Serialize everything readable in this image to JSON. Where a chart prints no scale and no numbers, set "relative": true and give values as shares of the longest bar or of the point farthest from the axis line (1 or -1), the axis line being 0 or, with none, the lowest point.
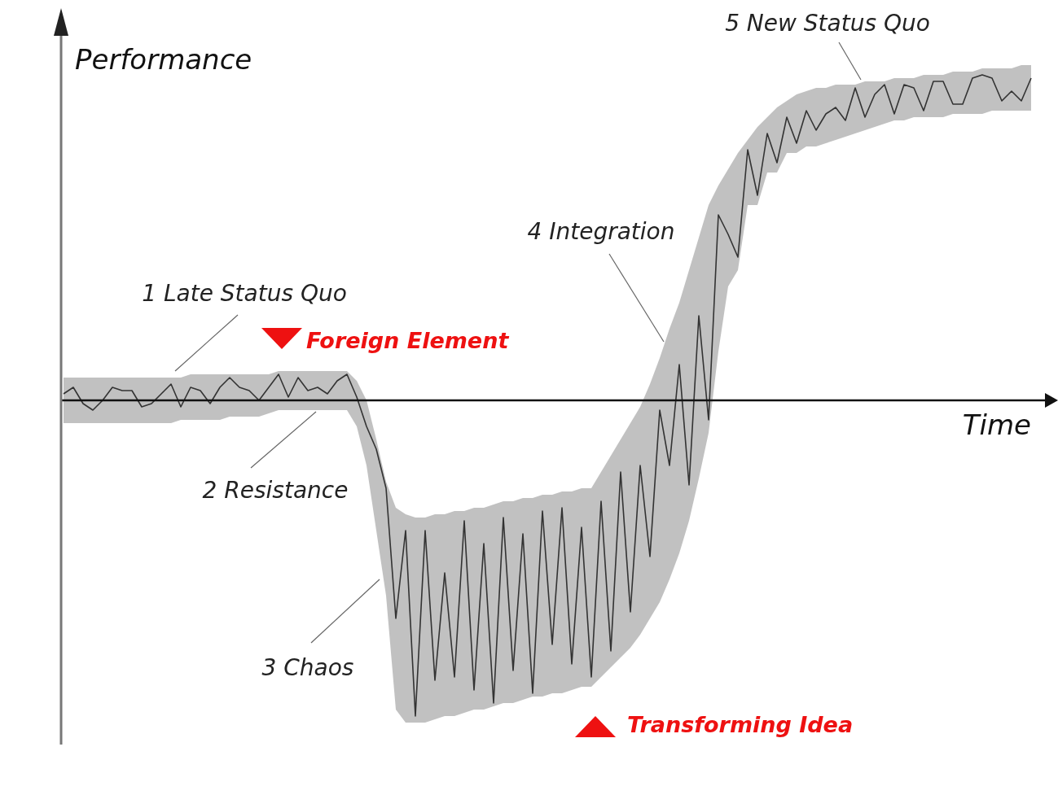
{
  "chart_data": {
    "type": "line",
    "relative": true,
    "tick_labels": false,
    "xlabel": "Time",
    "ylabel": "Performance",
    "categories": [
      null,
      null,
      null,
      null,
      null,
      null,
      null,
      null,
      null,
      null,
      null,
      null,
      null,
      null,
      null,
      null,
      null,
      null,
      null,
      null,
      null,
      null,
      null,
      null,
      null,
      null,
      null,
      null,
      null,
      null,
      null,
      null,
      null,
      null,
      null,
      null,
      null,
      null,
      null,
      null,
      null,
      null,
      null,
      null,
      null,
      null,
      null,
      null,
      null,
      null,
      null,
      null,
      null,
      null,
      null,
      null,
      null,
      null,
      null,
      null,
      null,
      null,
      null,
      null,
      null,
      null,
      null,
      null,
      null,
      null,
      null,
      null,
      null,
      null,
      null,
      null,
      null,
      null,
      null,
      null,
      null,
      null,
      null,
      null,
      null,
      null,
      null,
      null,
      null,
      null,
      null,
      null,
      null,
      null,
      null,
      null,
      null,
      null,
      null,
      null
    ],
    "series": [
      {
        "color": "#333333",
        "values": [
          0.02,
          0.04,
          -0.01,
          -0.03,
          0,
          0.04,
          0.03,
          0.03,
          -0.02,
          -0.01,
          0.02,
          0.05,
          -0.02,
          0.04,
          0.03,
          -0.01,
          0.04,
          0.07,
          0.04,
          0.03,
          0,
          0.04,
          0.08,
          0.01,
          0.07,
          0.03,
          0.04,
          0.02,
          0.06,
          0.08,
          0.01,
          -0.08,
          -0.15,
          -0.27,
          -0.67,
          -0.4,
          -0.97,
          -0.4,
          -0.86,
          -0.53,
          -0.85,
          -0.37,
          -0.89,
          -0.44,
          -0.93,
          -0.36,
          -0.83,
          -0.41,
          -0.9,
          -0.34,
          -0.75,
          -0.33,
          -0.81,
          -0.39,
          -0.85,
          -0.31,
          -0.77,
          -0.22,
          -0.65,
          -0.2,
          -0.48,
          -0.03,
          -0.2,
          0.11,
          -0.26,
          0.26,
          -0.06,
          0.57,
          0.51,
          0.44,
          0.77,
          0.63,
          0.82,
          0.73,
          0.87,
          0.79,
          0.89,
          0.83,
          0.88,
          0.9,
          0.86,
          0.96,
          0.87,
          0.94,
          0.97,
          0.88,
          0.97,
          0.96,
          0.89,
          0.98,
          0.98,
          0.91,
          0.91,
          0.99,
          1,
          0.99,
          0.92,
          0.95,
          0.92,
          0.99
        ],
        "upper": [
          0.07,
          0.07,
          0.07,
          0.07,
          0.07,
          0.07,
          0.07,
          0.07,
          0.07,
          0.07,
          0.07,
          0.07,
          0.07,
          0.08,
          0.08,
          0.08,
          0.08,
          0.08,
          0.08,
          0.08,
          0.08,
          0.08,
          0.09,
          0.09,
          0.09,
          0.09,
          0.09,
          0.09,
          0.09,
          0.09,
          0.06,
          0,
          -0.12,
          -0.25,
          -0.33,
          -0.35,
          -0.36,
          -0.36,
          -0.35,
          -0.35,
          -0.34,
          -0.34,
          -0.33,
          -0.33,
          -0.32,
          -0.31,
          -0.31,
          -0.3,
          -0.3,
          -0.29,
          -0.29,
          -0.28,
          -0.28,
          -0.27,
          -0.27,
          -0.22,
          -0.17,
          -0.12,
          -0.07,
          -0.02,
          0.05,
          0.13,
          0.22,
          0.3,
          0.4,
          0.5,
          0.6,
          0.66,
          0.71,
          0.76,
          0.8,
          0.84,
          0.87,
          0.9,
          0.92,
          0.94,
          0.95,
          0.96,
          0.96,
          0.97,
          0.97,
          0.97,
          0.98,
          0.98,
          0.98,
          0.99,
          0.99,
          0.99,
          1,
          1,
          1,
          1.01,
          1.01,
          1.01,
          1.02,
          1.02,
          1.02,
          1.02,
          1.03,
          1.03
        ],
        "lower": [
          -0.07,
          -0.07,
          -0.07,
          -0.07,
          -0.07,
          -0.07,
          -0.07,
          -0.07,
          -0.07,
          -0.07,
          -0.07,
          -0.07,
          -0.06,
          -0.06,
          -0.06,
          -0.06,
          -0.06,
          -0.05,
          -0.05,
          -0.05,
          -0.05,
          -0.04,
          -0.03,
          -0.03,
          -0.03,
          -0.03,
          -0.03,
          -0.03,
          -0.03,
          -0.03,
          -0.08,
          -0.2,
          -0.4,
          -0.6,
          -0.95,
          -0.99,
          -0.99,
          -0.99,
          -0.98,
          -0.97,
          -0.97,
          -0.96,
          -0.95,
          -0.95,
          -0.94,
          -0.93,
          -0.93,
          -0.92,
          -0.91,
          -0.91,
          -0.9,
          -0.9,
          -0.89,
          -0.88,
          -0.88,
          -0.85,
          -0.82,
          -0.79,
          -0.76,
          -0.72,
          -0.67,
          -0.62,
          -0.55,
          -0.47,
          -0.37,
          -0.24,
          -0.1,
          0.15,
          0.35,
          0.4,
          0.6,
          0.6,
          0.7,
          0.7,
          0.76,
          0.76,
          0.78,
          0.78,
          0.79,
          0.8,
          0.81,
          0.82,
          0.83,
          0.84,
          0.85,
          0.86,
          0.86,
          0.87,
          0.87,
          0.87,
          0.87,
          0.88,
          0.88,
          0.88,
          0.88,
          0.89,
          0.89,
          0.89,
          0.89,
          0.89
        ]
      }
    ],
    "annotations": [
      "1 Late Status Quo",
      "Foreign Element",
      "2 Resistance",
      "3 Chaos",
      "Transforming Idea",
      "4 Integration",
      "5 New Status Quo"
    ]
  }
}
